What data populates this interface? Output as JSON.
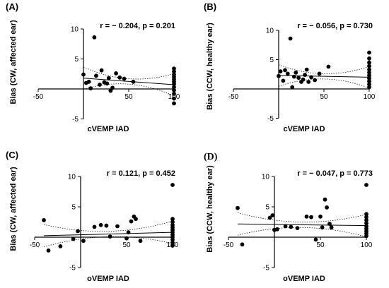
{
  "chart_data": [
    {
      "type": "scatter",
      "panel_label": "(A)",
      "annotation": "r = − 0.204, p = 0.201",
      "xlabel": "cVEMP IAD",
      "ylabel": "Bias (CW, affected ear)",
      "xlim": [
        -50,
        100
      ],
      "ylim": [
        -5,
        10
      ],
      "xticks": [
        "-50",
        "50",
        "100"
      ],
      "yticks": [
        "10",
        "5",
        "-5"
      ],
      "fit": {
        "intercept": 1.8,
        "slope": -0.011
      },
      "points": [
        {
          "x": 0,
          "y": 2.4
        },
        {
          "x": 3,
          "y": 1.0
        },
        {
          "x": 6,
          "y": 1.2
        },
        {
          "x": 8,
          "y": 0.1
        },
        {
          "x": 12,
          "y": 8.6
        },
        {
          "x": 14,
          "y": 2.2
        },
        {
          "x": 18,
          "y": 0.7
        },
        {
          "x": 20,
          "y": 3.1
        },
        {
          "x": 23,
          "y": 1.1
        },
        {
          "x": 26,
          "y": 0.9
        },
        {
          "x": 28,
          "y": 1.8
        },
        {
          "x": 30,
          "y": -0.3
        },
        {
          "x": 32,
          "y": 0.2
        },
        {
          "x": 36,
          "y": 2.6
        },
        {
          "x": 40,
          "y": 1.9
        },
        {
          "x": 45,
          "y": 1.7
        },
        {
          "x": 55,
          "y": 1.2
        },
        {
          "x": 100,
          "y": 3.4
        },
        {
          "x": 100,
          "y": 2.9
        },
        {
          "x": 100,
          "y": 2.4
        },
        {
          "x": 100,
          "y": 2.0
        },
        {
          "x": 100,
          "y": 1.6
        },
        {
          "x": 100,
          "y": 1.2
        },
        {
          "x": 100,
          "y": 0.8
        },
        {
          "x": 100,
          "y": 0.3
        },
        {
          "x": 100,
          "y": -0.2
        },
        {
          "x": 100,
          "y": -0.8
        },
        {
          "x": 100,
          "y": -1.6
        },
        {
          "x": 100,
          "y": -2.4
        }
      ]
    },
    {
      "type": "scatter",
      "panel_label": "(B)",
      "annotation": "r = − 0.056, p = 0.730",
      "xlabel": "cVEMP IAD",
      "ylabel": "Bias (CCW, healthy ear)",
      "xlim": [
        -50,
        100
      ],
      "ylim": [
        -5,
        10
      ],
      "xticks": [
        "-50",
        "50",
        "100"
      ],
      "yticks": [
        "10",
        "5",
        "-5"
      ],
      "fit": {
        "intercept": 2.3,
        "slope": -0.003
      },
      "points": [
        {
          "x": 0,
          "y": 2.2
        },
        {
          "x": 2,
          "y": 3.0
        },
        {
          "x": 5,
          "y": 1.4
        },
        {
          "x": 7,
          "y": 3.2
        },
        {
          "x": 10,
          "y": 2.6
        },
        {
          "x": 13,
          "y": 8.6
        },
        {
          "x": 15,
          "y": 0.3
        },
        {
          "x": 17,
          "y": 2.1
        },
        {
          "x": 19,
          "y": 2.8
        },
        {
          "x": 22,
          "y": 1.9
        },
        {
          "x": 25,
          "y": 1.2
        },
        {
          "x": 27,
          "y": 1.6
        },
        {
          "x": 29,
          "y": 2.4
        },
        {
          "x": 31,
          "y": 3.3
        },
        {
          "x": 33,
          "y": 1.2
        },
        {
          "x": 36,
          "y": 2.0
        },
        {
          "x": 40,
          "y": 1.5
        },
        {
          "x": 45,
          "y": 2.6
        },
        {
          "x": 55,
          "y": 3.8
        },
        {
          "x": 100,
          "y": 6.2
        },
        {
          "x": 100,
          "y": 5.2
        },
        {
          "x": 100,
          "y": 4.5
        },
        {
          "x": 100,
          "y": 3.9
        },
        {
          "x": 100,
          "y": 3.3
        },
        {
          "x": 100,
          "y": 2.8
        },
        {
          "x": 100,
          "y": 2.3
        },
        {
          "x": 100,
          "y": 1.8
        },
        {
          "x": 100,
          "y": 1.3
        },
        {
          "x": 100,
          "y": 0.8
        },
        {
          "x": 100,
          "y": 0.3
        }
      ]
    },
    {
      "type": "scatter",
      "panel_label": "(C)",
      "annotation": "r = 0.121, p = 0.452",
      "xlabel": "oVEMP IAD",
      "ylabel": "Bias (CW, affected ear)",
      "xlim": [
        -50,
        100
      ],
      "ylim": [
        -5,
        10
      ],
      "xticks": [
        "-50",
        "50",
        "100"
      ],
      "yticks": [
        "10",
        "5",
        "-5"
      ],
      "fit": {
        "intercept": 0.4,
        "slope": 0.004
      },
      "points": [
        {
          "x": -40,
          "y": 2.8
        },
        {
          "x": -35,
          "y": -2.2
        },
        {
          "x": -22,
          "y": -1.5
        },
        {
          "x": -8,
          "y": -0.3
        },
        {
          "x": -3,
          "y": 1.0
        },
        {
          "x": 3,
          "y": -0.6
        },
        {
          "x": 15,
          "y": 1.7
        },
        {
          "x": 22,
          "y": 2.0
        },
        {
          "x": 28,
          "y": 1.9
        },
        {
          "x": 32,
          "y": 0.1
        },
        {
          "x": 40,
          "y": 1.8
        },
        {
          "x": 50,
          "y": -0.2
        },
        {
          "x": 52,
          "y": 0.8
        },
        {
          "x": 55,
          "y": 2.6
        },
        {
          "x": 58,
          "y": 3.4
        },
        {
          "x": 60,
          "y": 3.0
        },
        {
          "x": 65,
          "y": -0.6
        },
        {
          "x": 100,
          "y": 8.6
        },
        {
          "x": 100,
          "y": 3.0
        },
        {
          "x": 100,
          "y": 2.5
        },
        {
          "x": 100,
          "y": 2.0
        },
        {
          "x": 100,
          "y": 1.6
        },
        {
          "x": 100,
          "y": 1.2
        },
        {
          "x": 100,
          "y": 0.8
        },
        {
          "x": 100,
          "y": 0.4
        },
        {
          "x": 100,
          "y": 0.0
        },
        {
          "x": 100,
          "y": -0.4
        },
        {
          "x": 100,
          "y": -0.9
        },
        {
          "x": 100,
          "y": -1.4
        }
      ]
    },
    {
      "type": "scatter",
      "panel_label": "(D)",
      "annotation": "r = − 0.047, p = 0.773",
      "xlabel": "oVEMP IAD",
      "ylabel": "Bias (CCW, healthy ear)",
      "xlim": [
        -50,
        100
      ],
      "ylim": [
        -5,
        10
      ],
      "xticks": [
        "-50",
        "50",
        "100"
      ],
      "yticks": [
        "10",
        "5",
        "-5"
      ],
      "fit": {
        "intercept": 2.1,
        "slope": -0.002
      },
      "points": [
        {
          "x": -40,
          "y": 4.8
        },
        {
          "x": -35,
          "y": -1.2
        },
        {
          "x": -5,
          "y": 3.2
        },
        {
          "x": -2,
          "y": 3.6
        },
        {
          "x": 0,
          "y": 1.2
        },
        {
          "x": 3,
          "y": 1.3
        },
        {
          "x": 12,
          "y": 1.8
        },
        {
          "x": 18,
          "y": 1.7
        },
        {
          "x": 25,
          "y": 1.5
        },
        {
          "x": 35,
          "y": 3.4
        },
        {
          "x": 40,
          "y": 3.3
        },
        {
          "x": 45,
          "y": -0.4
        },
        {
          "x": 50,
          "y": 3.4
        },
        {
          "x": 52,
          "y": 1.6
        },
        {
          "x": 55,
          "y": 6.2
        },
        {
          "x": 57,
          "y": 4.9
        },
        {
          "x": 60,
          "y": 2.2
        },
        {
          "x": 62,
          "y": 1.6
        },
        {
          "x": 100,
          "y": 8.6
        },
        {
          "x": 100,
          "y": 3.8
        },
        {
          "x": 100,
          "y": 3.3
        },
        {
          "x": 100,
          "y": 2.8
        },
        {
          "x": 100,
          "y": 2.3
        },
        {
          "x": 100,
          "y": 1.8
        },
        {
          "x": 100,
          "y": 1.4
        },
        {
          "x": 100,
          "y": 1.0
        },
        {
          "x": 100,
          "y": 0.6
        },
        {
          "x": 100,
          "y": 0.2
        }
      ]
    }
  ]
}
